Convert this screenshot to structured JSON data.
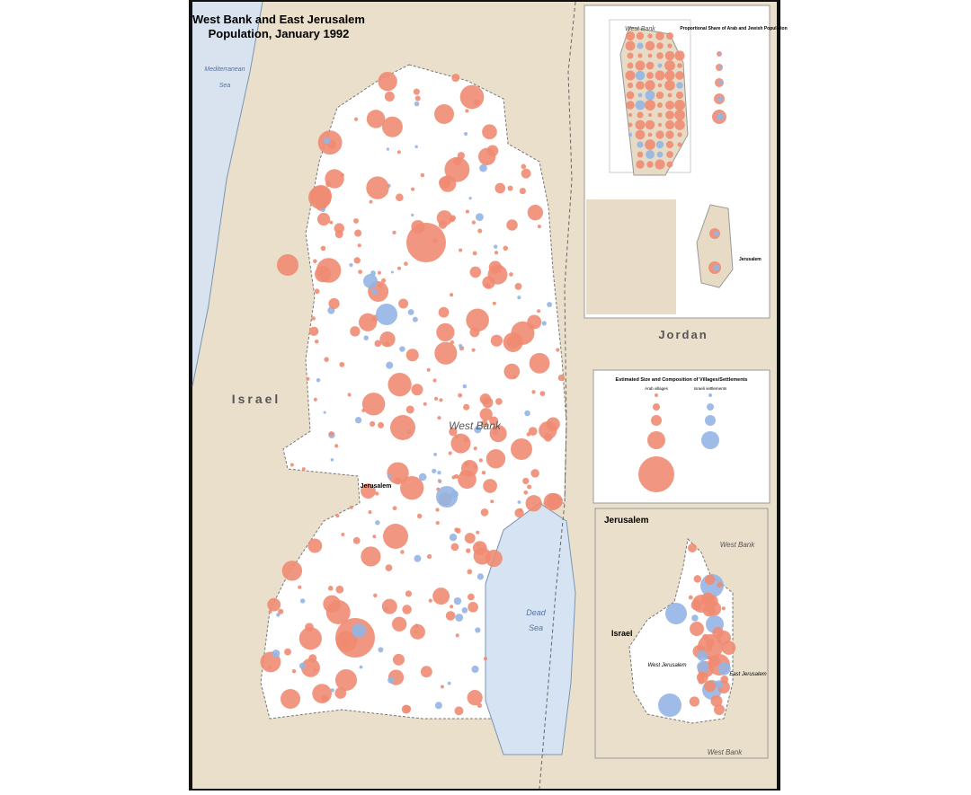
{
  "title": {
    "line1": "West Bank and East Jerusalem",
    "line2": "Population, January 1992"
  },
  "labels": {
    "mediterranean": "Mediterranean",
    "med_sea": "Sea",
    "israel": "Israel",
    "jordan": "Jordan",
    "west_bank": "West Bank",
    "dead": "Dead",
    "dead_sea": "Sea",
    "jerusalem": "Jerusalem"
  },
  "inset_top": {
    "title": "West Bank",
    "legend_title": "Proportional Share of Arab and Jewish Population",
    "jerusalem": "Jerusalem"
  },
  "legend": {
    "title": "Estimated Size and Composition of Villages/Settlements",
    "arab": "Arab villages",
    "israeli": "Israeli settlements"
  },
  "jerusalem_inset": {
    "title": "Jerusalem",
    "west_bank_top": "West Bank",
    "israel": "Israel",
    "west_jerusalem": "West Jerusalem",
    "east_jerusalem": "East Jerusalem",
    "west_bank_bottom": "West Bank"
  }
}
